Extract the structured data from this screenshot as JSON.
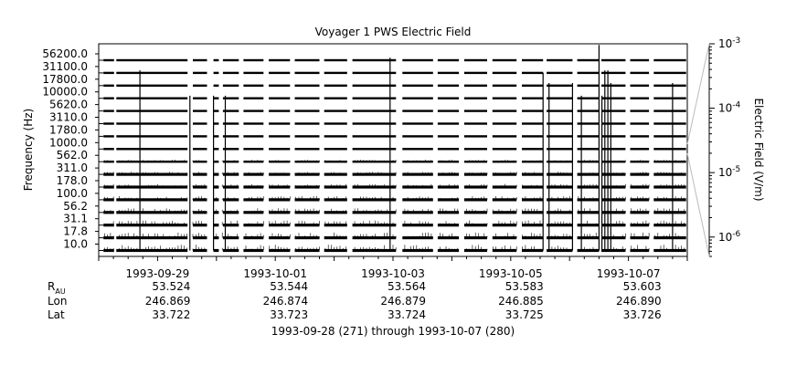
{
  "chart_data": {
    "type": "line",
    "title": "Voyager 1 PWS Electric Field",
    "ylabel": "Frequency (Hz)",
    "y2label": "Electric Field (V/m)",
    "xlabel": "1993-09-28 (271) through 1993-10-07 (280)",
    "channels_hz": [
      "56200.0",
      "31100.0",
      "17800.0",
      "10000.0",
      "5620.0",
      "3110.0",
      "1780.0",
      "1000.0",
      "562.0",
      "311.0",
      "178.0",
      "100.0",
      "56.2",
      "31.1",
      "17.8",
      "10.0"
    ],
    "x_range_days": [
      "1993-09-28",
      "1993-10-08"
    ],
    "x_ticks": [
      "1993-09-29",
      "1993-10-01",
      "1993-10-03",
      "1993-10-05",
      "1993-10-07"
    ],
    "y2_scale": "log",
    "y2_range": [
      5e-07,
      0.001
    ],
    "y2_ticks": [
      {
        "base": "10",
        "exp": "-3",
        "value": 0.001
      },
      {
        "base": "10",
        "exp": "-4",
        "value": 0.0001
      },
      {
        "base": "10",
        "exp": "-5",
        "value": 1e-05
      },
      {
        "base": "10",
        "exp": "-6",
        "value": 1e-06
      }
    ],
    "spikes_days": [
      0.7,
      1.55,
      1.95,
      2.15,
      4.95,
      7.55,
      7.65,
      8.05,
      8.2,
      8.5,
      8.55,
      8.6,
      8.65,
      8.7,
      9.75
    ],
    "gaps_days": [
      [
        0.27,
        0.3
      ],
      [
        1.52,
        1.6
      ],
      [
        1.85,
        1.95
      ],
      [
        2.05,
        2.1
      ],
      [
        2.38,
        2.45
      ],
      [
        2.8,
        2.88
      ],
      [
        3.25,
        3.32
      ],
      [
        3.75,
        3.82
      ],
      [
        4.22,
        4.3
      ],
      [
        5.05,
        5.15
      ],
      [
        5.68,
        5.75
      ],
      [
        6.12,
        6.2
      ],
      [
        6.6,
        6.68
      ],
      [
        7.1,
        7.18
      ],
      [
        7.55,
        7.6
      ],
      [
        8.05,
        8.12
      ],
      [
        8.5,
        8.53
      ],
      [
        8.95,
        9.02
      ],
      [
        9.35,
        9.42
      ]
    ]
  },
  "ephemeris": {
    "row_labels": [
      {
        "main": "R",
        "sub": "AU"
      },
      {
        "main": "Lon",
        "sub": ""
      },
      {
        "main": "Lat",
        "sub": ""
      }
    ],
    "columns": [
      {
        "r": "53.524",
        "lon": "246.869",
        "lat": "33.722"
      },
      {
        "r": "53.544",
        "lon": "246.874",
        "lat": "33.723"
      },
      {
        "r": "53.564",
        "lon": "246.879",
        "lat": "33.724"
      },
      {
        "r": "53.583",
        "lon": "246.885",
        "lat": "33.725"
      },
      {
        "r": "53.603",
        "lon": "246.890",
        "lat": "33.726"
      }
    ]
  }
}
